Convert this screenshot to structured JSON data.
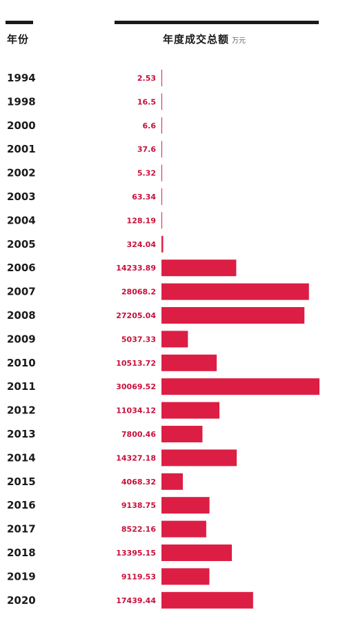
{
  "header": {
    "year_column": "年份",
    "value_column": "年度成交总额",
    "unit": "万元"
  },
  "colors": {
    "bar": "#dc1e44",
    "value_text": "#c8103a",
    "text": "#1a1a1a",
    "rule": "#1a1a1a"
  },
  "chart_data": {
    "type": "bar",
    "orientation": "horizontal",
    "categories": [
      "1994",
      "1998",
      "2000",
      "2001",
      "2002",
      "2003",
      "2004",
      "2005",
      "2006",
      "2007",
      "2008",
      "2009",
      "2010",
      "2011",
      "2012",
      "2013",
      "2014",
      "2015",
      "2016",
      "2017",
      "2018",
      "2019",
      "2020"
    ],
    "values": [
      2.53,
      16.5,
      6.6,
      37.6,
      5.32,
      63.34,
      128.19,
      324.04,
      14233.89,
      28068.2,
      27205.04,
      5037.33,
      10513.72,
      30069.52,
      11034.12,
      7800.46,
      14327.18,
      4068.32,
      9138.75,
      8522.16,
      13395.15,
      9119.53,
      17439.44
    ],
    "value_labels": [
      "2.53",
      "16.5",
      "6.6",
      "37.6",
      "5.32",
      "63.34",
      "128.19",
      "324.04",
      "14233.89",
      "28068.2",
      "27205.04",
      "5037.33",
      "10513.72",
      "30069.52",
      "11034.12",
      "7800.46",
      "14327.18",
      "4068.32",
      "9138.75",
      "8522.16",
      "13395.15",
      "9119.53",
      "17439.44"
    ],
    "xlim": [
      0,
      30069.52
    ]
  }
}
